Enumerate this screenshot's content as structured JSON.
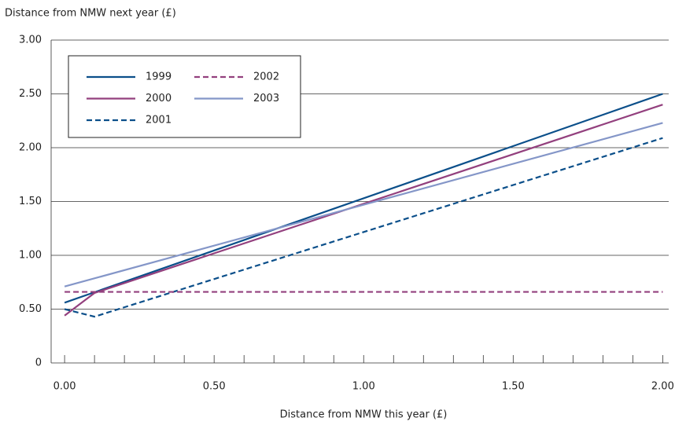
{
  "chart_data": {
    "type": "line",
    "y_axis_title": "Distance from NMW next year (£)",
    "x_axis_title": "Distance from NMW this year (£)",
    "series": [
      {
        "name": "1999",
        "color": "#0b4f8a",
        "dashed": false,
        "x": [
          0,
          0.1,
          2
        ],
        "values": [
          0.56,
          0.657,
          2.5
        ]
      },
      {
        "name": "2000",
        "color": "#93407e",
        "dashed": false,
        "x": [
          0,
          0.1,
          2
        ],
        "values": [
          0.44,
          0.65,
          2.4
        ]
      },
      {
        "name": "2001",
        "color": "#0b4f8a",
        "dashed": true,
        "x": [
          0,
          0.1,
          2
        ],
        "values": [
          0.5,
          0.43,
          2.09
        ]
      },
      {
        "name": "2002",
        "color": "#93407e",
        "dashed": true,
        "x": [
          0,
          2
        ],
        "values": [
          0.66,
          0.66
        ]
      },
      {
        "name": "2003",
        "color": "#8496c8",
        "dashed": false,
        "x": [
          0,
          2
        ],
        "values": [
          0.71,
          2.23
        ]
      }
    ],
    "xlim": [
      -0.045,
      2.02
    ],
    "ylim": [
      0,
      3
    ],
    "xticks": [
      {
        "value": 0,
        "label": "0.00"
      },
      {
        "value": 0.5,
        "label": "0.50"
      },
      {
        "value": 1,
        "label": "1.00"
      },
      {
        "value": 1.5,
        "label": "1.50"
      },
      {
        "value": 2,
        "label": "2.00"
      }
    ],
    "xminor_ticks": [
      0.1,
      0.2,
      0.3,
      0.4,
      0.6,
      0.7,
      0.8,
      0.9,
      1.1,
      1.2,
      1.3,
      1.4,
      1.6,
      1.7,
      1.8,
      1.9
    ],
    "yticks": [
      0,
      {
        "value": 0.5,
        "label": "0.50"
      },
      {
        "value": 1,
        "label": "1.00"
      },
      {
        "value": 1.5,
        "label": "1.50"
      },
      {
        "value": 2,
        "label": "2.00"
      },
      {
        "value": 2.5,
        "label": "2.50"
      },
      {
        "value": 3,
        "label": "3.00"
      }
    ],
    "grid": true,
    "legend_position": "upper-left"
  }
}
